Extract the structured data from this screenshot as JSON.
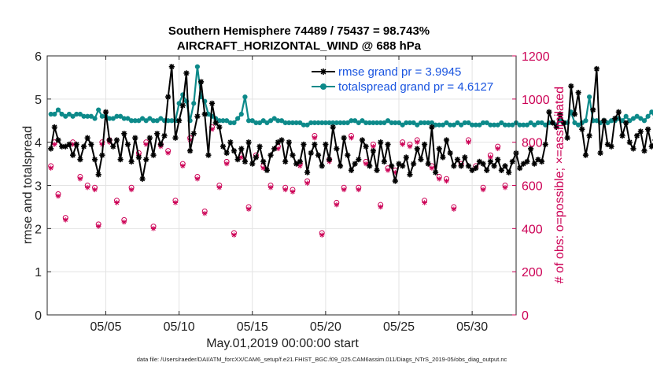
{
  "chart_data": {
    "type": "line",
    "title": "Southern Hemisphere 74489 / 75437 = 98.743%",
    "subtitle": "AIRCRAFT_HORIZONTAL_WIND @ 688 hPa",
    "xlabel": "May.01,2019 00:00:00 start",
    "ylabel": "rmse and totalspread",
    "ylabel_right": "# of obs: o=possible; ×=assimilated",
    "footnote": "data file: /Users/raeder/DAI/ATM_forcXX/CAM6_setup/f.e21.FHIST_BGC.f09_025.CAM6assim.011/Diags_NTrS_2019-05/obs_diag_output.nc",
    "xlim": [
      1,
      33
    ],
    "ylim": [
      0,
      6
    ],
    "ylim_right": [
      0,
      1200
    ],
    "x_ticks": [
      5,
      10,
      15,
      20,
      25,
      30
    ],
    "x_tick_labels": [
      "05/05",
      "05/10",
      "05/15",
      "05/20",
      "05/25",
      "05/30"
    ],
    "y_ticks": [
      "0",
      "1",
      "2",
      "3",
      "4",
      "5",
      "6"
    ],
    "y_ticks_right": [
      "0",
      "200",
      "400",
      "600",
      "800",
      "1000",
      "1200"
    ],
    "legend": {
      "placement": "top-right",
      "entries": [
        "rmse grand pr = 3.9945",
        "totalspread grand pr = 4.6127"
      ]
    },
    "colors": {
      "rmse": "#000000",
      "totalspread": "#0d8a8a",
      "obs": "#cc0055",
      "legend_text": "#1a55e0",
      "grid": "#e3e3e3"
    },
    "x_start": 1.25,
    "x_step": 0.25,
    "series": [
      {
        "name": "rmse",
        "marker": "asterisk",
        "values": [
          3.85,
          4.35,
          4.05,
          3.9,
          3.9,
          3.95,
          3.7,
          3.95,
          3.6,
          3.9,
          4.1,
          3.95,
          3.6,
          3.25,
          3.7,
          4.7,
          4.05,
          3.9,
          4.05,
          3.6,
          4.2,
          3.95,
          3.55,
          4.1,
          3.65,
          3.15,
          3.6,
          4.1,
          3.7,
          4.2,
          3.95,
          4.15,
          5.05,
          5.75,
          4.1,
          4.5,
          4.85,
          5.6,
          3.8,
          4.2,
          4.6,
          5.4,
          4.65,
          3.7,
          4.9,
          4.45,
          4.35,
          3.9,
          3.75,
          4.0,
          3.8,
          3.6,
          3.85,
          3.55,
          4.0,
          3.5,
          3.65,
          3.9,
          3.55,
          3.35,
          3.7,
          3.85,
          4.0,
          4.05,
          3.55,
          4.0,
          3.7,
          3.5,
          3.55,
          3.95,
          3.3,
          3.75,
          3.95,
          3.7,
          3.45,
          3.95,
          3.6,
          4.35,
          3.85,
          3.45,
          4.1,
          3.7,
          3.35,
          3.5,
          3.6,
          4.05,
          3.9,
          3.45,
          3.8,
          3.35,
          4.0,
          3.55,
          3.95,
          3.45,
          3.1,
          3.5,
          3.45,
          3.65,
          3.25,
          3.5,
          3.85,
          3.6,
          3.95,
          3.5,
          4.35,
          3.3,
          3.85,
          3.65,
          4.05,
          3.75,
          3.45,
          3.6,
          3.45,
          3.65,
          3.45,
          3.35,
          3.4,
          3.55,
          3.5,
          3.35,
          3.55,
          3.45,
          3.6,
          3.35,
          3.45,
          3.3,
          3.55,
          3.75,
          3.4,
          3.5,
          3.55,
          3.85,
          3.5,
          3.6,
          3.55,
          3.95,
          4.7,
          4.45,
          4.35,
          4.65,
          4.45,
          4.1,
          5.3,
          4.65,
          5.15,
          4.3,
          3.7,
          4.15,
          4.75,
          5.7,
          3.75,
          4.5,
          3.95,
          3.9,
          4.55,
          4.7,
          4.15,
          4.45,
          4.0,
          3.85,
          4.15,
          4.25,
          3.8,
          4.3,
          3.9,
          4.05,
          3.95
        ]
      },
      {
        "name": "totalspread",
        "marker": "circle",
        "values": [
          4.65,
          4.65,
          4.75,
          4.65,
          4.6,
          4.65,
          4.6,
          4.65,
          4.65,
          4.6,
          4.6,
          4.6,
          4.55,
          4.75,
          4.6,
          4.6,
          4.55,
          4.55,
          4.6,
          4.6,
          4.55,
          4.55,
          4.5,
          4.5,
          4.5,
          4.55,
          4.5,
          4.55,
          4.5,
          4.5,
          4.55,
          4.5,
          4.5,
          4.5,
          4.5,
          4.9,
          5.1,
          4.95,
          4.5,
          4.9,
          5.75,
          5.05,
          4.95,
          4.65,
          4.6,
          4.55,
          4.5,
          4.5,
          4.5,
          4.45,
          4.45,
          4.55,
          4.65,
          5.05,
          4.5,
          4.5,
          4.45,
          4.45,
          4.5,
          4.45,
          4.5,
          4.55,
          4.5,
          4.5,
          4.45,
          4.45,
          4.45,
          4.45,
          4.45,
          4.4,
          4.4,
          4.45,
          4.45,
          4.45,
          4.45,
          4.45,
          4.45,
          4.45,
          4.45,
          4.45,
          4.45,
          4.45,
          4.5,
          4.5,
          4.45,
          4.5,
          4.45,
          4.45,
          4.45,
          4.45,
          4.45,
          4.45,
          4.5,
          4.45,
          4.45,
          4.45,
          4.4,
          4.45,
          4.45,
          4.45,
          4.4,
          4.45,
          4.45,
          4.45,
          4.45,
          4.4,
          4.4,
          4.4,
          4.45,
          4.4,
          4.4,
          4.45,
          4.4,
          4.45,
          4.45,
          4.4,
          4.4,
          4.4,
          4.45,
          4.45,
          4.4,
          4.4,
          4.4,
          4.45,
          4.4,
          4.4,
          4.4,
          4.45,
          4.4,
          4.4,
          4.4,
          4.45,
          4.4,
          4.45,
          4.45,
          4.4,
          4.45,
          4.45,
          4.4,
          4.5,
          4.45,
          4.45,
          4.7,
          4.45,
          4.4,
          4.45,
          4.5,
          5.05,
          4.5,
          4.5,
          4.45,
          4.5,
          4.45,
          4.5,
          4.5,
          4.55,
          4.5,
          4.6,
          4.5,
          4.55,
          4.6,
          4.55,
          4.5,
          4.6,
          4.7,
          4.55,
          4.5
        ]
      },
      {
        "name": "obs_possible",
        "axis": "right",
        "marker": "o",
        "x": [
          1.25,
          1.5,
          1.75,
          2.25,
          2.75,
          3.25,
          3.75,
          4.25,
          4.5,
          4.75,
          5.25,
          5.75,
          6.25,
          6.75,
          7.25,
          7.75,
          8.25,
          8.75,
          9.25,
          9.75,
          10.25,
          10.75,
          11.25,
          11.75,
          12.25,
          12.75,
          13.25,
          13.75,
          14.25,
          14.75,
          15.25,
          15.75,
          16.25,
          16.75,
          17.25,
          17.75,
          18.25,
          18.75,
          19.25,
          19.75,
          20.25,
          20.75,
          21.25,
          21.75,
          22.25,
          22.75,
          23.25,
          23.75,
          24.25,
          24.75,
          25.25,
          25.75,
          26.25,
          26.75,
          27.25,
          27.75,
          28.25,
          28.75,
          29.25,
          29.75,
          30.25,
          30.75,
          31.25,
          31.75,
          32.25
        ],
        "values": [
          690,
          800,
          560,
          450,
          800,
          640,
          600,
          590,
          420,
          800,
          810,
          530,
          440,
          590,
          750,
          800,
          410,
          790,
          760,
          530,
          700,
          820,
          640,
          480,
          870,
          600,
          710,
          380,
          740,
          500,
          740,
          690,
          600,
          780,
          590,
          580,
          700,
          620,
          830,
          380,
          720,
          520,
          590,
          830,
          590,
          710,
          790,
          510,
          680,
          670,
          800,
          790,
          810,
          530,
          690,
          640,
          630,
          500,
          700,
          810,
          690,
          590,
          740,
          780,
          600
        ]
      },
      {
        "name": "obs_assimilated",
        "axis": "right",
        "marker": "x",
        "x": [
          1.25,
          1.5,
          1.75,
          2.25,
          2.75,
          3.25,
          3.75,
          4.25,
          4.5,
          4.75,
          5.25,
          5.75,
          6.25,
          6.75,
          7.25,
          7.75,
          8.25,
          8.75,
          9.25,
          9.75,
          10.25,
          10.75,
          11.25,
          11.75,
          12.25,
          12.75,
          13.25,
          13.75,
          14.25,
          14.75,
          15.25,
          15.75,
          16.25,
          16.75,
          17.25,
          17.75,
          18.25,
          18.75,
          19.25,
          19.75,
          20.25,
          20.75,
          21.25,
          21.75,
          22.25,
          22.75,
          23.25,
          23.75,
          24.25,
          24.75,
          25.25,
          25.75,
          26.25,
          26.75,
          27.25,
          27.75,
          28.25,
          28.75,
          29.25,
          29.75,
          30.25,
          30.75,
          31.25,
          31.75,
          32.25
        ],
        "values": [
          680,
          790,
          550,
          440,
          790,
          630,
          590,
          580,
          410,
          790,
          800,
          520,
          430,
          580,
          740,
          790,
          400,
          780,
          750,
          520,
          690,
          810,
          630,
          470,
          860,
          590,
          700,
          370,
          730,
          490,
          730,
          680,
          590,
          770,
          580,
          570,
          690,
          610,
          820,
          370,
          710,
          510,
          580,
          820,
          580,
          700,
          780,
          500,
          670,
          660,
          790,
          780,
          800,
          520,
          680,
          630,
          620,
          490,
          690,
          800,
          680,
          580,
          730,
          770,
          590
        ]
      }
    ]
  }
}
